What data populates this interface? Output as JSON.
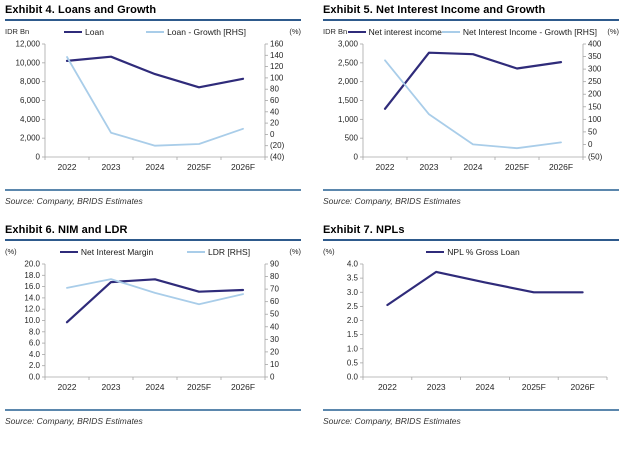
{
  "colors": {
    "navy": "#2f2b7a",
    "light_blue": "#a9cde9",
    "title_rule": "#2e5a8c",
    "divider": "#5b87ad",
    "axis_line": "#a6a6a6",
    "tick_text": "#262626"
  },
  "source_label": "Source: Company, BRIDS Estimates",
  "chart_data": [
    {
      "type": "line",
      "title": "Exhibit 4. Loans and Growth",
      "categories": [
        "2022",
        "2023",
        "2024",
        "2025F",
        "2026F"
      ],
      "legend_position": "top",
      "grid": false,
      "left_axis": {
        "label": "IDR Bn",
        "min": 0,
        "max": 12000,
        "ticks": [
          "12,000",
          "10,000",
          "8,000",
          "6,000",
          "4,000",
          "2,000",
          "0"
        ]
      },
      "right_axis": {
        "label": "(%)",
        "min": -40,
        "max": 160,
        "ticks": [
          "160",
          "140",
          "120",
          "100",
          "80",
          "60",
          "40",
          "20",
          "0",
          "(20)",
          "(40)"
        ]
      },
      "series": [
        {
          "name": "Loan",
          "axis": "left",
          "color_key": "navy",
          "values": [
            10200,
            10650,
            8800,
            7400,
            8300
          ]
        },
        {
          "name": "Loan - Growth [RHS]",
          "axis": "right",
          "color_key": "light_blue",
          "values": [
            137,
            3,
            -20,
            -17,
            10
          ]
        }
      ]
    },
    {
      "type": "line",
      "title": "Exhibit 5. Net Interest Income and Growth",
      "categories": [
        "2022",
        "2023",
        "2024",
        "2025F",
        "2026F"
      ],
      "legend_position": "top",
      "grid": false,
      "left_axis": {
        "label": "IDR Bn",
        "min": 0,
        "max": 3000,
        "ticks": [
          "3,000",
          "2,500",
          "2,000",
          "1,500",
          "1,000",
          "500",
          "0"
        ]
      },
      "right_axis": {
        "label": "(%)",
        "min": -50,
        "max": 400,
        "ticks": [
          "400",
          "350",
          "300",
          "250",
          "200",
          "150",
          "100",
          "50",
          "0",
          "(50)"
        ]
      },
      "series": [
        {
          "name": "Net interest income",
          "axis": "left",
          "color_key": "navy",
          "values": [
            1280,
            2770,
            2730,
            2350,
            2520
          ]
        },
        {
          "name": "Net Interest Income - Growth [RHS]",
          "axis": "right",
          "color_key": "light_blue",
          "values": [
            335,
            120,
            0,
            -15,
            8
          ]
        }
      ]
    },
    {
      "type": "line",
      "title": "Exhibit 6. NIM and LDR",
      "categories": [
        "2022",
        "2023",
        "2024",
        "2025F",
        "2026F"
      ],
      "legend_position": "top",
      "grid": false,
      "left_axis": {
        "label": "(%)",
        "min": 0,
        "max": 20,
        "ticks": [
          "20.0",
          "18.0",
          "16.0",
          "14.0",
          "12.0",
          "10.0",
          "8.0",
          "6.0",
          "4.0",
          "2.0",
          "0.0"
        ]
      },
      "right_axis": {
        "label": "(%)",
        "min": 0,
        "max": 90,
        "ticks": [
          "90",
          "80",
          "70",
          "60",
          "50",
          "40",
          "30",
          "20",
          "10",
          "0"
        ]
      },
      "series": [
        {
          "name": "Net Interest Margin",
          "axis": "left",
          "color_key": "navy",
          "values": [
            9.7,
            16.8,
            17.3,
            15.1,
            15.4
          ]
        },
        {
          "name": "LDR [RHS]",
          "axis": "right",
          "color_key": "light_blue",
          "values": [
            71,
            78,
            67,
            58,
            66
          ]
        }
      ]
    },
    {
      "type": "line",
      "title": "Exhibit 7. NPLs",
      "categories": [
        "2022",
        "2023",
        "2024",
        "2025F",
        "2026F"
      ],
      "legend_position": "top",
      "grid": false,
      "left_axis": {
        "label": "(%)",
        "min": 0,
        "max": 4,
        "ticks": [
          "4.0",
          "3.5",
          "3.0",
          "2.5",
          "2.0",
          "1.5",
          "1.0",
          "0.5",
          "0.0"
        ]
      },
      "series": [
        {
          "name": "NPL % Gross Loan",
          "axis": "left",
          "color_key": "navy",
          "values": [
            2.55,
            3.72,
            3.35,
            3.0,
            3.0
          ]
        }
      ]
    }
  ]
}
